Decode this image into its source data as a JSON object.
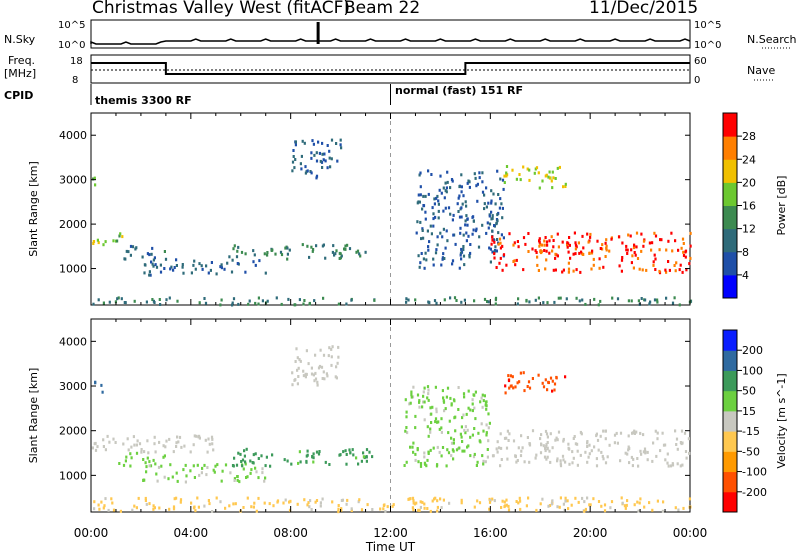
{
  "header": {
    "station": "Christmas Valley West (fitACF)",
    "beam": "Beam 22",
    "date": "11/Dec/2015"
  },
  "strip": {
    "nsky_label": "N.Sky",
    "nsky_ticks": [
      "10^5",
      "10^0"
    ],
    "nsearch_label": "N.Search",
    "nsearch_ticks": [
      "10^5",
      "10^0"
    ],
    "freq_label_1": "Freq.",
    "freq_label_2": "[MHz]",
    "freq_ticks": [
      "18",
      "8"
    ],
    "nave_label": "Nave",
    "nave_ticks": [
      "60",
      "0"
    ],
    "cpid_label": "CPID",
    "cpid_segments": [
      "themis 3300 RF",
      "normal (fast) 151 RF"
    ]
  },
  "colors": {
    "power_scale": [
      "#0000ff",
      "#1f4fa8",
      "#2f6b7a",
      "#3c8a50",
      "#6cc830",
      "#f0c000",
      "#ff7f00",
      "#ff0000"
    ],
    "velocity_scale": [
      "#ff0000",
      "#ff5000",
      "#ff9a00",
      "#ffc850",
      "#c8c8c0",
      "#6cd040",
      "#3c9a5a",
      "#2f6aa0",
      "#0a1eff"
    ],
    "ground_scatter": "#c8c8c0"
  },
  "chart_data": [
    {
      "type": "heatmap",
      "panel": "power",
      "x_label": "Time UT",
      "x_ticks": [
        "00:00",
        "04:00",
        "08:00",
        "12:00",
        "16:00",
        "20:00",
        "00:00"
      ],
      "x_range_hours": [
        0,
        24
      ],
      "ylabel": "Slant Range [km]",
      "y_ticks": [
        1000,
        2000,
        3000,
        4000
      ],
      "ylim": [
        180,
        4500
      ],
      "colorbar_label": "Power [dB]",
      "colorbar_ticks": [
        4,
        8,
        12,
        16,
        20,
        24,
        28
      ],
      "colorbar_range": [
        0,
        32
      ],
      "regions": [
        {
          "t": [
            0.0,
            0.5
          ],
          "r": [
            2800,
            3100
          ],
          "v": 18
        },
        {
          "t": [
            0.0,
            1.5
          ],
          "r": [
            1500,
            1800
          ],
          "v": 18
        },
        {
          "t": [
            1.0,
            3.0
          ],
          "r": [
            1200,
            1500
          ],
          "v": 10
        },
        {
          "t": [
            2.0,
            7.0
          ],
          "r": [
            850,
            1200
          ],
          "v": 8
        },
        {
          "t": [
            5.5,
            11.0
          ],
          "r": [
            1200,
            1550
          ],
          "v": 12
        },
        {
          "t": [
            8.0,
            10.0
          ],
          "r": [
            3000,
            3900
          ],
          "v": 8
        },
        {
          "t": [
            13.0,
            16.5
          ],
          "r": [
            1000,
            3200
          ],
          "v": 8
        },
        {
          "t": [
            16.0,
            24.0
          ],
          "r": [
            900,
            1800
          ],
          "v": 29
        },
        {
          "t": [
            16.5,
            19.0
          ],
          "r": [
            2800,
            3300
          ],
          "v": 20
        },
        {
          "t": [
            0.0,
            24.0
          ],
          "r": [
            180,
            350
          ],
          "v": 12
        }
      ]
    },
    {
      "type": "heatmap",
      "panel": "velocity",
      "x_label": "Time UT",
      "x_ticks": [
        "00:00",
        "04:00",
        "08:00",
        "12:00",
        "16:00",
        "20:00",
        "00:00"
      ],
      "x_range_hours": [
        0,
        24
      ],
      "ylabel": "Slant Range [km]",
      "y_ticks": [
        1000,
        2000,
        3000,
        4000
      ],
      "ylim": [
        180,
        4500
      ],
      "colorbar_label": "Velocity [m s^-1]",
      "colorbar_ticks": [
        -200,
        -100,
        -50,
        -15,
        15,
        50,
        100,
        200
      ],
      "regions": [
        {
          "t": [
            0.0,
            0.5
          ],
          "r": [
            2800,
            3100
          ],
          "v": 150
        },
        {
          "t": [
            0.0,
            5.0
          ],
          "r": [
            1500,
            1900
          ],
          "v": 0
        },
        {
          "t": [
            1.0,
            3.0
          ],
          "r": [
            1200,
            1500
          ],
          "v": 60
        },
        {
          "t": [
            2.0,
            7.0
          ],
          "r": [
            850,
            1250
          ],
          "v": 40
        },
        {
          "t": [
            5.5,
            11.5
          ],
          "r": [
            1200,
            1600
          ],
          "v": 100
        },
        {
          "t": [
            8.0,
            10.0
          ],
          "r": [
            3000,
            3900
          ],
          "v": 0
        },
        {
          "t": [
            12.5,
            16.0
          ],
          "r": [
            1200,
            3000
          ],
          "v": 40
        },
        {
          "t": [
            16.0,
            24.0
          ],
          "r": [
            1200,
            2000
          ],
          "v": 0
        },
        {
          "t": [
            16.5,
            19.0
          ],
          "r": [
            2800,
            3300
          ],
          "v": -180
        },
        {
          "t": [
            0.0,
            24.0
          ],
          "r": [
            180,
            500
          ],
          "v": -40
        }
      ]
    }
  ]
}
